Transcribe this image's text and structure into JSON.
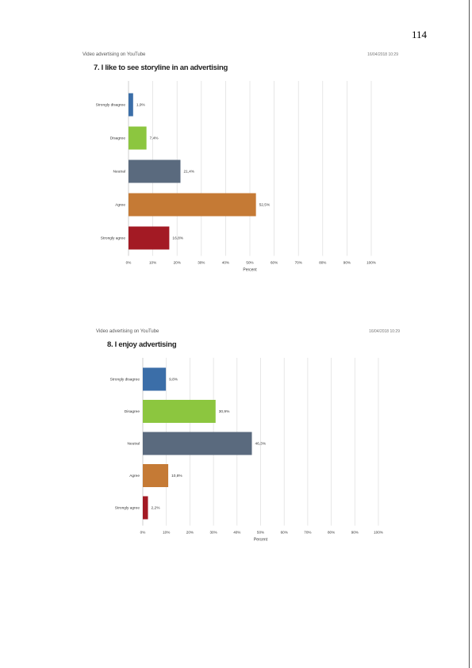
{
  "page_number": "114",
  "charts": [
    {
      "source": "Video advertising on YouTube",
      "timestamp": "16/04/2018 10:29",
      "title": "7. I like to see storyline in an advertising"
    },
    {
      "source": "Video advertising on YouTube",
      "timestamp": "16/04/2018 10:29",
      "title": "8. I enjoy advertising"
    }
  ],
  "colors": {
    "strongly_disagree": "#3b6ea8",
    "disagree": "#8cc63f",
    "neutral": "#5a6a7e",
    "agree": "#c57a35",
    "strongly_agree": "#a31a24"
  },
  "chart_data": [
    {
      "type": "bar",
      "orientation": "horizontal",
      "title": "7. I like to see storyline in an advertising",
      "categories": [
        "Strongly disagree",
        "Disagree",
        "Neutral",
        "Agree",
        "Strongly agree"
      ],
      "values": [
        1.9,
        7.4,
        21.4,
        52.5,
        16.8
      ],
      "value_labels": [
        "1,9%",
        "7,4%",
        "21,4%",
        "52,5%",
        "16,8%"
      ],
      "xlabel": "Percent",
      "xlim": [
        0,
        100
      ],
      "xticks": [
        "0%",
        "10%",
        "20%",
        "30%",
        "40%",
        "50%",
        "60%",
        "70%",
        "80%",
        "90%",
        "100%"
      ],
      "grid": true
    },
    {
      "type": "bar",
      "orientation": "horizontal",
      "title": "8. I enjoy advertising",
      "categories": [
        "Strongly disagree",
        "Disagree",
        "Neutral",
        "Agree",
        "Strongly agree"
      ],
      "values": [
        9.8,
        30.9,
        46.3,
        10.8,
        2.2
      ],
      "value_labels": [
        "9,8%",
        "30,9%",
        "46,3%",
        "10,8%",
        "2,2%"
      ],
      "xlabel": "Percent",
      "xlim": [
        0,
        100
      ],
      "xticks": [
        "0%",
        "10%",
        "20%",
        "30%",
        "40%",
        "50%",
        "60%",
        "70%",
        "80%",
        "90%",
        "100%"
      ],
      "grid": true
    }
  ]
}
